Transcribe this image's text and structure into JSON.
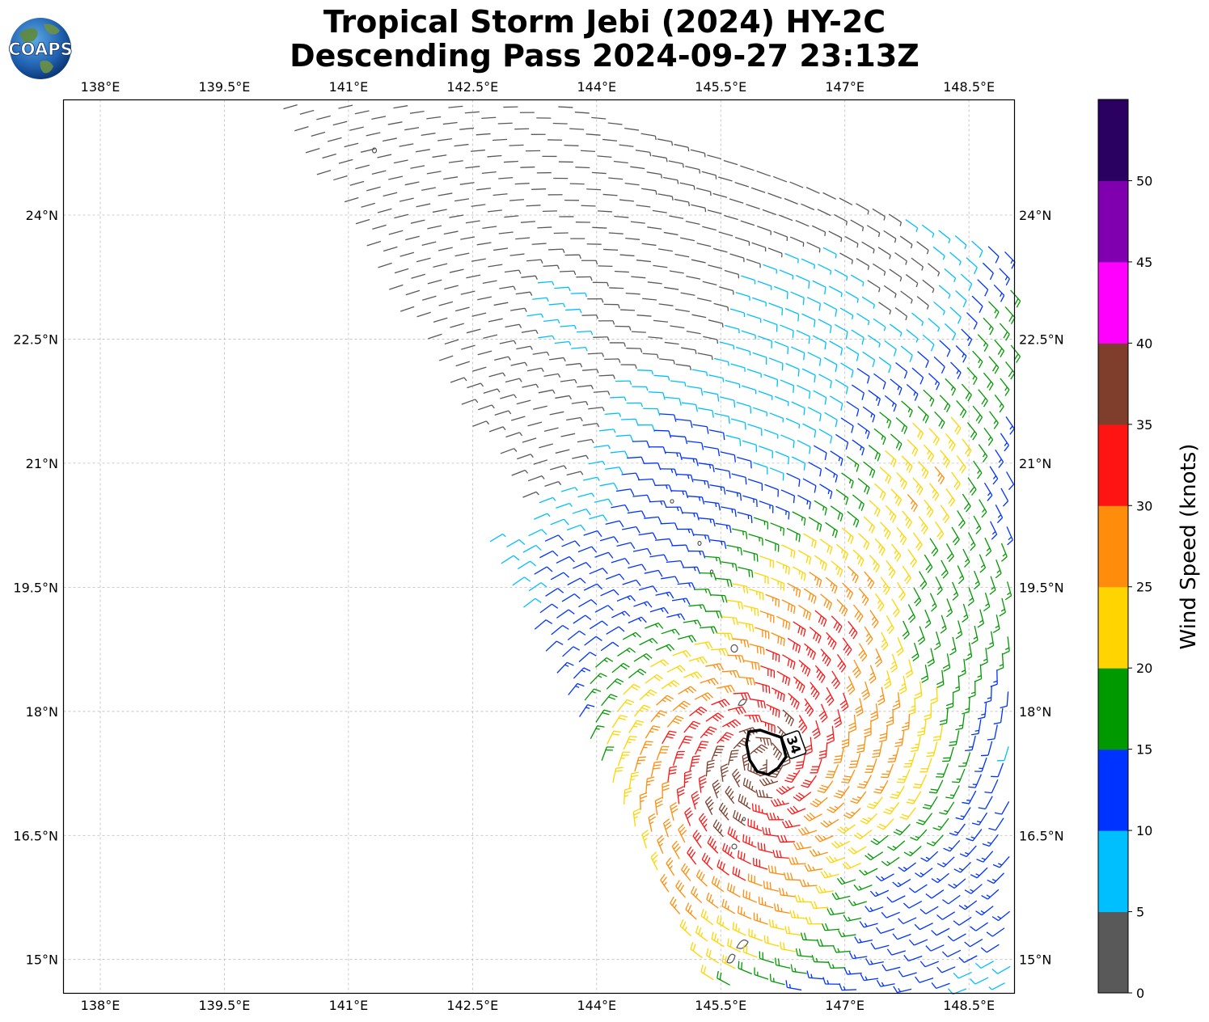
{
  "title_line1": "Tropical Storm Jebi (2024) HY-2C",
  "title_line2": "Descending Pass 2024-09-27 23:13Z",
  "logo_text": "COAPS",
  "map": {
    "lon_ticks": [
      "138°E",
      "139.5°E",
      "141°E",
      "142.5°E",
      "144°E",
      "145.5°E",
      "147°E",
      "148.5°E"
    ],
    "lat_ticks": [
      "24°N",
      "22.5°N",
      "21°N",
      "19.5°N",
      "18°N",
      "16.5°N",
      "15°N"
    ],
    "grid": true,
    "contour_label": "34"
  },
  "colorbar": {
    "label": "Wind Speed (knots)",
    "ticks": [
      "0",
      "5",
      "10",
      "15",
      "20",
      "25",
      "30",
      "35",
      "40",
      "45",
      "50"
    ],
    "colors": [
      "#595959",
      "#00bfff",
      "#0033ff",
      "#009900",
      "#ffd400",
      "#ff8c0a",
      "#ff1414",
      "#7f3e2c",
      "#ff00ff",
      "#8000b0",
      "#2a0060"
    ]
  },
  "chart_data": {
    "type": "wind-barb map",
    "lon_range": [
      137.55,
      149.05
    ],
    "lat_range": [
      14.6,
      25.4
    ],
    "center": {
      "lon": 146.0,
      "lat": 17.4
    },
    "max_wind_kt": 35,
    "wind_contour_kt": 34,
    "speed_bins_kt": [
      0,
      5,
      10,
      15,
      20,
      25,
      30,
      35,
      40,
      45,
      50,
      55
    ]
  }
}
